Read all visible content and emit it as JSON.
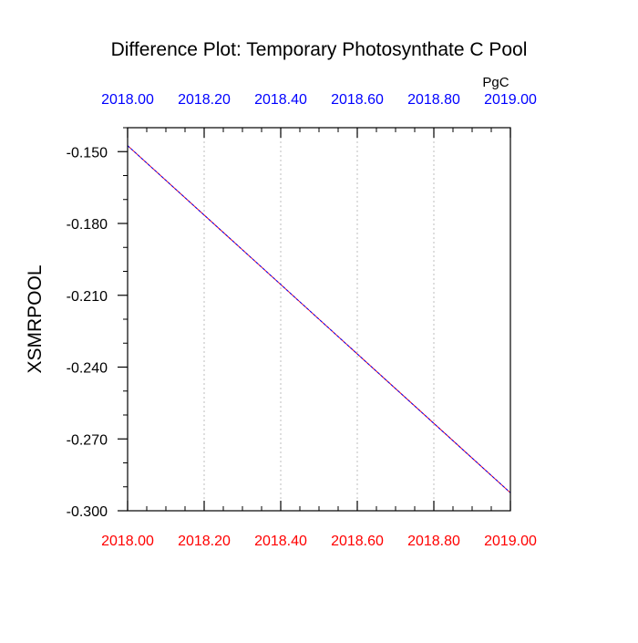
{
  "chart_data": {
    "type": "line",
    "title": "Difference Plot: Temporary Photosynthate C Pool",
    "units": "PgC",
    "xlabel": "",
    "ylabel": "XSMRPOOL",
    "xlim": [
      2018.0,
      2019.0
    ],
    "ylim": [
      -0.3,
      -0.14
    ],
    "x_ticks": [
      2018.0,
      2018.2,
      2018.4,
      2018.6,
      2018.8,
      2019.0
    ],
    "x_tick_labels_bottom": [
      "2018.00",
      "2018.20",
      "2018.40",
      "2018.60",
      "2018.80",
      "2019.00"
    ],
    "x_tick_labels_top": [
      "2018.00",
      "2018.20",
      "2018.40",
      "2018.60",
      "2018.80",
      "2019.00"
    ],
    "y_ticks": [
      -0.15,
      -0.18,
      -0.21,
      -0.24,
      -0.27,
      -0.3
    ],
    "y_tick_labels": [
      "-0.150",
      "-0.180",
      "-0.210",
      "-0.240",
      "-0.270",
      "-0.300"
    ],
    "grid": "vertical dotted",
    "x_tick_color_bottom": "#ff0000",
    "x_tick_color_top": "#0000ff",
    "series": [
      {
        "x": [
          2018.0,
          2019.0
        ],
        "y": [
          -0.1475,
          -0.2925
        ],
        "color": "#ff0000",
        "style": "solid"
      },
      {
        "x": [
          2018.0,
          2019.0
        ],
        "y": [
          -0.1475,
          -0.2925
        ],
        "color": "#0000ff",
        "style": "dashed"
      }
    ]
  }
}
